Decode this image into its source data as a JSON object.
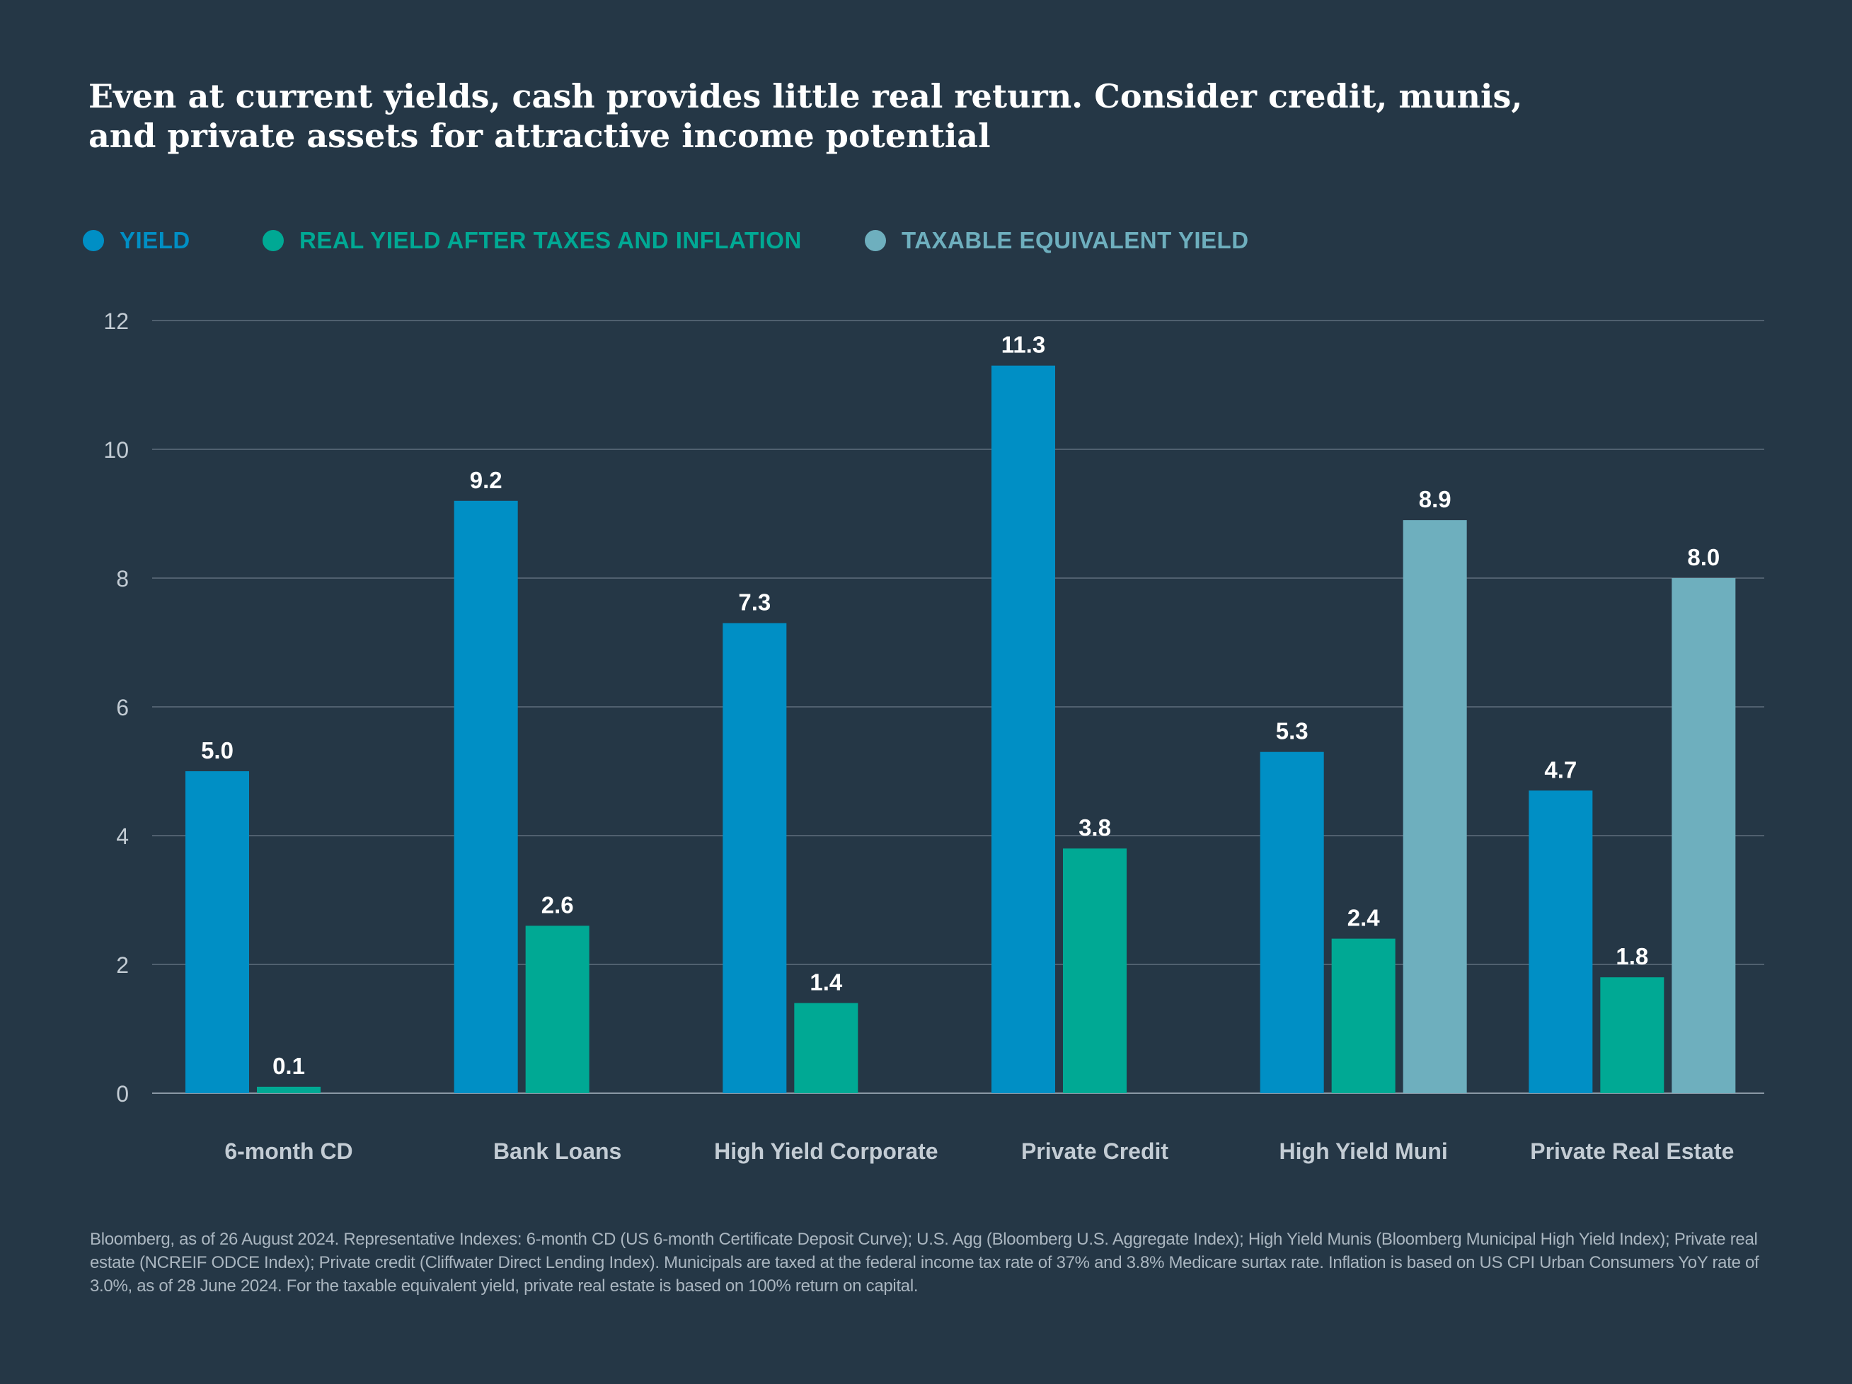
{
  "title": "Even at current yields, cash provides little real return. Consider credit, munis, and private assets for attractive income potential",
  "legend": [
    {
      "label": "YIELD",
      "color": "#008fc5"
    },
    {
      "label": "REAL YIELD AFTER TAXES AND INFLATION",
      "color": "#00a994"
    },
    {
      "label": "TAXABLE EQUIVALENT YIELD",
      "color": "#6eafbe"
    }
  ],
  "chart_data": {
    "type": "bar",
    "categories": [
      "6-month CD",
      "Bank Loans",
      "High Yield Corporate",
      "Private Credit",
      "High Yield Muni",
      "Private Real Estate"
    ],
    "series": [
      {
        "name": "YIELD",
        "color": "#008fc5",
        "values": [
          5.0,
          9.2,
          7.3,
          11.3,
          5.3,
          4.7
        ]
      },
      {
        "name": "REAL YIELD AFTER TAXES AND INFLATION",
        "color": "#00a994",
        "values": [
          0.1,
          2.6,
          1.4,
          3.8,
          2.4,
          1.8
        ]
      },
      {
        "name": "TAXABLE EQUIVALENT YIELD",
        "color": "#6eafbe",
        "values": [
          null,
          null,
          null,
          null,
          8.9,
          8.0
        ]
      }
    ],
    "ylim": [
      0,
      12
    ],
    "yticks": [
      0,
      2,
      4,
      6,
      8,
      10,
      12
    ],
    "grid": true,
    "legend_position": "top-left",
    "value_labels": true
  },
  "footnote": "Bloomberg, as of 26 August 2024. Representative Indexes: 6-month CD (US 6-month Certificate Deposit Curve); U.S. Agg (Bloomberg U.S. Aggregate Index); High Yield Munis (Bloomberg Municipal High Yield Index); Private real estate (NCREIF ODCE Index); Private credit (Cliffwater Direct Lending Index). Municipals are taxed at the federal income tax rate of 37% and 3.8% Medicare surtax rate. Inflation is based on US CPI Urban Consumers YoY rate of 3.0%, as of 28 June 2024. For the taxable equivalent yield, private real estate is based on 100% return on capital."
}
